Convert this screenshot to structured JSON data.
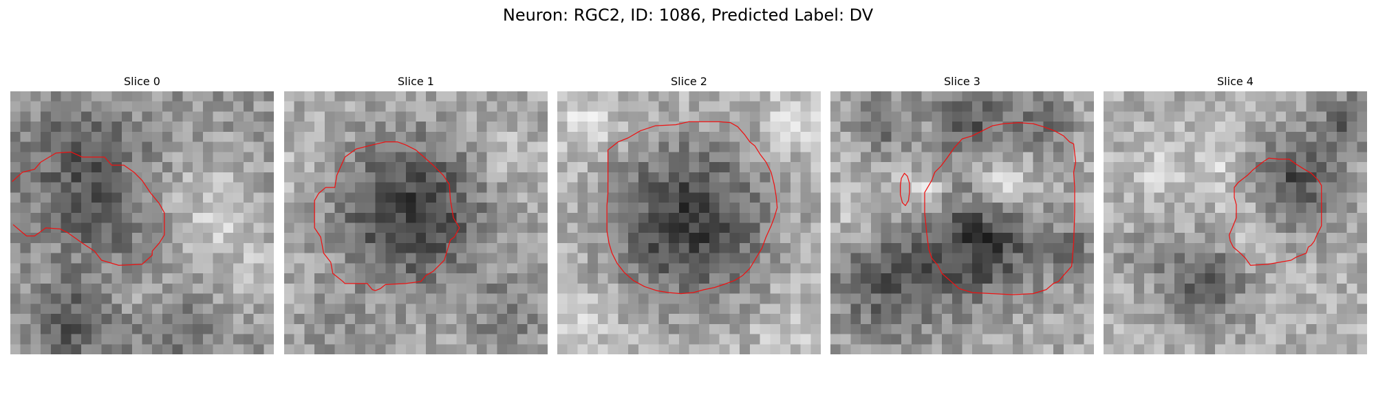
{
  "figure": {
    "title": "Neuron: RGC2, ID: 1086, Predicted Label: DV",
    "contour_color": "#ee1111",
    "colormap": "grayscale"
  },
  "panels": [
    {
      "title": "Slice 0",
      "image_description": "noisy grayscale microscopy patch; dark mottled region upper-left and bottom band, lighter region to the right",
      "contours": [
        [
          [
            0.2,
            8.9
          ],
          [
            1.2,
            8.0
          ],
          [
            2.4,
            7.7
          ],
          [
            3.0,
            7.0
          ],
          [
            4.5,
            6.1
          ],
          [
            6.0,
            6.0
          ],
          [
            7.1,
            6.5
          ],
          [
            9.3,
            6.5
          ],
          [
            10.0,
            7.3
          ],
          [
            11.2,
            7.3
          ],
          [
            12.2,
            8.0
          ],
          [
            13.0,
            8.8
          ],
          [
            13.8,
            10.0
          ],
          [
            14.7,
            11.1
          ],
          [
            15.2,
            12.0
          ],
          [
            15.2,
            14.2
          ],
          [
            14.7,
            15.0
          ],
          [
            14.0,
            15.8
          ],
          [
            14.0,
            16.2
          ],
          [
            13.0,
            17.1
          ],
          [
            10.7,
            17.2
          ],
          [
            9.0,
            16.7
          ],
          [
            8.3,
            15.8
          ],
          [
            7.1,
            15.0
          ],
          [
            5.7,
            14.0
          ],
          [
            4.9,
            13.6
          ],
          [
            3.5,
            13.5
          ],
          [
            2.4,
            14.3
          ],
          [
            1.6,
            14.3
          ],
          [
            1.0,
            13.8
          ],
          [
            0.3,
            13.2
          ]
        ]
      ]
    },
    {
      "title": "Slice 1",
      "image_description": "large dark textured cell body centered in a light speckled surround",
      "contours": [
        [
          [
            5.0,
            9.5
          ],
          [
            5.2,
            8.3
          ],
          [
            6.0,
            6.5
          ],
          [
            7.1,
            5.7
          ],
          [
            8.7,
            5.3
          ],
          [
            10.0,
            5.0
          ],
          [
            11.2,
            5.0
          ],
          [
            12.0,
            5.3
          ],
          [
            13.0,
            5.8
          ],
          [
            13.8,
            6.5
          ],
          [
            14.7,
            7.3
          ],
          [
            15.7,
            8.3
          ],
          [
            16.3,
            9.2
          ],
          [
            16.4,
            10.7
          ],
          [
            16.7,
            12.5
          ],
          [
            17.3,
            13.5
          ],
          [
            16.8,
            14.4
          ],
          [
            16.4,
            14.7
          ],
          [
            15.8,
            16.7
          ],
          [
            15.5,
            17.0
          ],
          [
            14.7,
            17.8
          ],
          [
            14.0,
            18.2
          ],
          [
            13.5,
            18.8
          ],
          [
            12.0,
            19.0
          ],
          [
            10.0,
            19.1
          ],
          [
            9.5,
            19.5
          ],
          [
            9.0,
            19.7
          ],
          [
            8.7,
            19.6
          ],
          [
            8.2,
            19.0
          ],
          [
            6.0,
            19.0
          ],
          [
            5.8,
            18.8
          ],
          [
            4.8,
            18.0
          ],
          [
            4.6,
            16.9
          ],
          [
            3.9,
            16.0
          ],
          [
            3.6,
            14.4
          ],
          [
            3.0,
            13.5
          ],
          [
            3.0,
            10.8
          ],
          [
            3.4,
            10.1
          ],
          [
            4.1,
            9.5
          ],
          [
            4.8,
            9.5
          ]
        ]
      ]
    },
    {
      "title": "Slice 2",
      "image_description": "large round dark cell body filling most of the frame with a light rim",
      "contours": [
        [
          [
            5.0,
            5.8
          ],
          [
            6.0,
            5.0
          ],
          [
            7.0,
            4.6
          ],
          [
            8.2,
            3.9
          ],
          [
            9.7,
            3.4
          ],
          [
            11.7,
            3.3
          ],
          [
            13.0,
            3.0
          ],
          [
            16.0,
            3.0
          ],
          [
            17.1,
            3.1
          ],
          [
            17.8,
            3.5
          ],
          [
            18.5,
            4.3
          ],
          [
            19.0,
            5.0
          ],
          [
            19.5,
            5.4
          ],
          [
            20.0,
            6.2
          ],
          [
            20.6,
            7.0
          ],
          [
            21.1,
            8.0
          ],
          [
            21.4,
            9.2
          ],
          [
            21.6,
            10.4
          ],
          [
            21.7,
            11.5
          ],
          [
            21.4,
            12.5
          ],
          [
            21.1,
            13.3
          ],
          [
            20.6,
            14.4
          ],
          [
            20.2,
            15.5
          ],
          [
            19.6,
            16.5
          ],
          [
            19.0,
            17.5
          ],
          [
            18.3,
            18.2
          ],
          [
            17.5,
            18.7
          ],
          [
            16.4,
            19.1
          ],
          [
            15.5,
            19.4
          ],
          [
            14.5,
            19.6
          ],
          [
            13.4,
            19.9
          ],
          [
            12.2,
            20.0
          ],
          [
            11.0,
            19.9
          ],
          [
            9.8,
            19.7
          ],
          [
            8.6,
            19.3
          ],
          [
            7.5,
            18.7
          ],
          [
            6.6,
            17.9
          ],
          [
            5.9,
            17.0
          ],
          [
            5.4,
            16.0
          ],
          [
            5.1,
            15.0
          ],
          [
            4.9,
            13.8
          ],
          [
            4.9,
            12.5
          ],
          [
            4.9,
            11.3
          ],
          [
            5.0,
            10.0
          ],
          [
            5.0,
            8.6
          ],
          [
            5.0,
            7.2
          ]
        ]
      ]
    },
    {
      "title": "Slice 3",
      "image_description": "dark cell bodies separated by a bright diagonal band; a small isolated contour at left",
      "contours": [
        [
          [
            7.0,
            8.6
          ],
          [
            7.3,
            8.1
          ],
          [
            7.6,
            8.4
          ],
          [
            7.8,
            9.1
          ],
          [
            7.8,
            10.0
          ],
          [
            7.7,
            10.8
          ],
          [
            7.4,
            11.3
          ],
          [
            7.1,
            11.0
          ],
          [
            6.9,
            10.2
          ],
          [
            6.9,
            9.3
          ]
        ],
        [
          [
            9.5,
            14.0
          ],
          [
            9.3,
            12.0
          ],
          [
            9.3,
            10.0
          ],
          [
            10.0,
            8.8
          ],
          [
            10.3,
            8.0
          ],
          [
            10.9,
            7.4
          ],
          [
            11.5,
            6.6
          ],
          [
            12.2,
            5.6
          ],
          [
            13.0,
            4.7
          ],
          [
            14.0,
            4.4
          ],
          [
            15.0,
            3.9
          ],
          [
            16.0,
            3.4
          ],
          [
            17.1,
            3.2
          ],
          [
            18.6,
            3.1
          ],
          [
            20.0,
            3.2
          ],
          [
            21.0,
            3.5
          ],
          [
            22.1,
            3.9
          ],
          [
            23.0,
            4.4
          ],
          [
            23.6,
            5.0
          ],
          [
            24.0,
            5.2
          ],
          [
            24.2,
            7.0
          ],
          [
            24.0,
            8.0
          ],
          [
            24.1,
            9.5
          ],
          [
            24.1,
            12.0
          ],
          [
            24.0,
            15.0
          ],
          [
            23.8,
            17.3
          ],
          [
            23.0,
            18.2
          ],
          [
            22.5,
            18.8
          ],
          [
            22.0,
            19.0
          ],
          [
            21.3,
            19.6
          ],
          [
            20.0,
            20.0
          ],
          [
            18.0,
            20.1
          ],
          [
            16.0,
            20.0
          ],
          [
            14.0,
            19.9
          ],
          [
            12.7,
            19.5
          ],
          [
            11.9,
            18.8
          ],
          [
            11.0,
            18.0
          ],
          [
            10.6,
            17.2
          ],
          [
            10.0,
            16.5
          ],
          [
            9.7,
            15.6
          ]
        ]
      ]
    },
    {
      "title": "Slice 4",
      "image_description": "mottled light grayscale patch with dark blobs at upper-right and bottom-center",
      "contours": [
        [
          [
            12.9,
            9.5
          ],
          [
            13.3,
            9.0
          ],
          [
            14.2,
            8.3
          ],
          [
            14.7,
            7.8
          ],
          [
            15.7,
            7.0
          ],
          [
            16.3,
            6.6
          ],
          [
            17.3,
            6.7
          ],
          [
            18.3,
            6.7
          ],
          [
            19.0,
            7.2
          ],
          [
            19.8,
            7.7
          ],
          [
            20.5,
            8.1
          ],
          [
            21.2,
            8.8
          ],
          [
            21.5,
            9.3
          ],
          [
            21.5,
            11.5
          ],
          [
            21.5,
            13.3
          ],
          [
            21.0,
            14.3
          ],
          [
            20.8,
            14.8
          ],
          [
            20.5,
            15.2
          ],
          [
            20.2,
            15.4
          ],
          [
            20.0,
            16.0
          ],
          [
            19.0,
            16.4
          ],
          [
            18.5,
            16.7
          ],
          [
            16.2,
            17.1
          ],
          [
            14.5,
            17.2
          ],
          [
            14.0,
            16.5
          ],
          [
            13.5,
            16.0
          ],
          [
            12.8,
            15.4
          ],
          [
            12.5,
            14.8
          ],
          [
            12.4,
            14.2
          ],
          [
            12.7,
            13.5
          ],
          [
            13.1,
            12.5
          ],
          [
            13.1,
            11.2
          ],
          [
            12.9,
            10.5
          ]
        ]
      ]
    }
  ]
}
